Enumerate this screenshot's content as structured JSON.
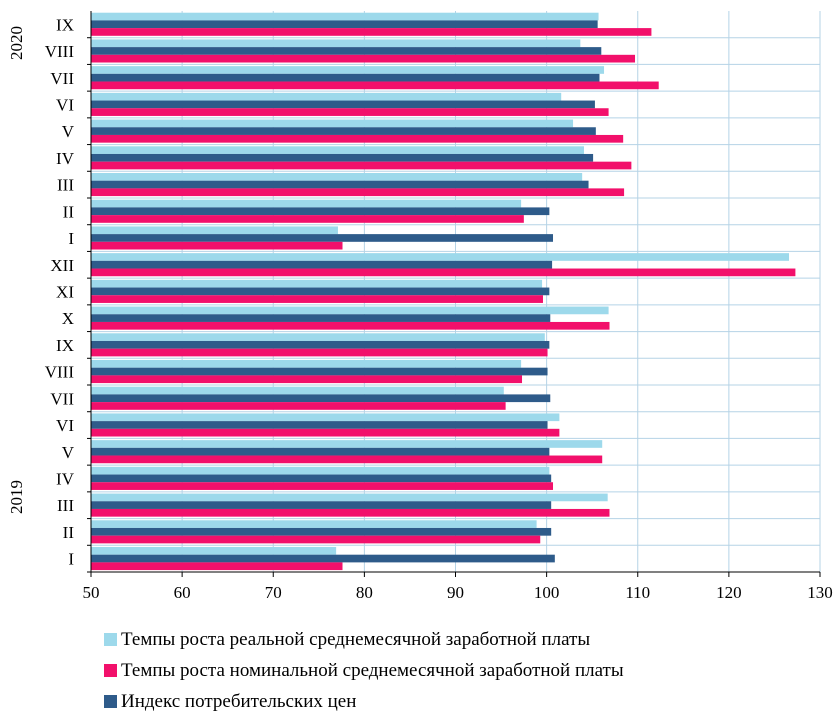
{
  "chart_data": {
    "type": "bar",
    "orientation": "horizontal",
    "categories": [
      "I",
      "II",
      "III",
      "IV",
      "V",
      "VI",
      "VII",
      "VIII",
      "IX",
      "X",
      "XI",
      "XII",
      "I",
      "II",
      "III",
      "IV",
      "V",
      "VI",
      "VII",
      "VIII",
      "IX"
    ],
    "groups": [
      {
        "label": "2019",
        "from": 0,
        "to": 11
      },
      {
        "label": "2020",
        "from": 12,
        "to": 20
      }
    ],
    "series": [
      {
        "name": "Темпы роста реальной среднемесячной заработной платы",
        "color": "#9dd9eb",
        "values": [
          76.9,
          98.9,
          106.7,
          100.3,
          106.1,
          101.4,
          95.3,
          97.2,
          99.8,
          106.8,
          99.5,
          126.6,
          77.1,
          97.2,
          103.9,
          104.1,
          102.9,
          101.6,
          106.3,
          103.7,
          105.7
        ]
      },
      {
        "name": "Индекс потребительских цен",
        "color": "#2e5b8a",
        "values": [
          100.9,
          100.5,
          100.5,
          100.5,
          100.3,
          100.1,
          100.4,
          100.1,
          100.3,
          100.4,
          100.3,
          100.6,
          100.7,
          100.3,
          104.6,
          105.1,
          105.4,
          105.3,
          105.8,
          106.0,
          105.6
        ]
      },
      {
        "name": "Темпы роста номинальной среднемесячной заработной платы",
        "color": "#f2106b",
        "values": [
          77.6,
          99.3,
          106.9,
          100.7,
          106.1,
          101.4,
          95.5,
          97.3,
          100.1,
          106.9,
          99.6,
          127.3,
          77.6,
          97.5,
          108.5,
          109.3,
          108.4,
          106.8,
          112.3,
          109.7,
          111.5
        ]
      }
    ],
    "xlim": [
      50,
      130
    ],
    "xticks": [
      50,
      60,
      70,
      80,
      90,
      100,
      110,
      120,
      130
    ],
    "grid": true,
    "legend": {
      "position": "bottom",
      "items": [
        {
          "label": "Темпы роста реальной среднемесячной заработной платы",
          "color": "#9dd9eb"
        },
        {
          "label": "Темпы роста номинальной среднемесячной заработной платы",
          "color": "#f2106b"
        },
        {
          "label": "Индекс потребительских цен",
          "color": "#2e5b8a"
        }
      ]
    }
  }
}
